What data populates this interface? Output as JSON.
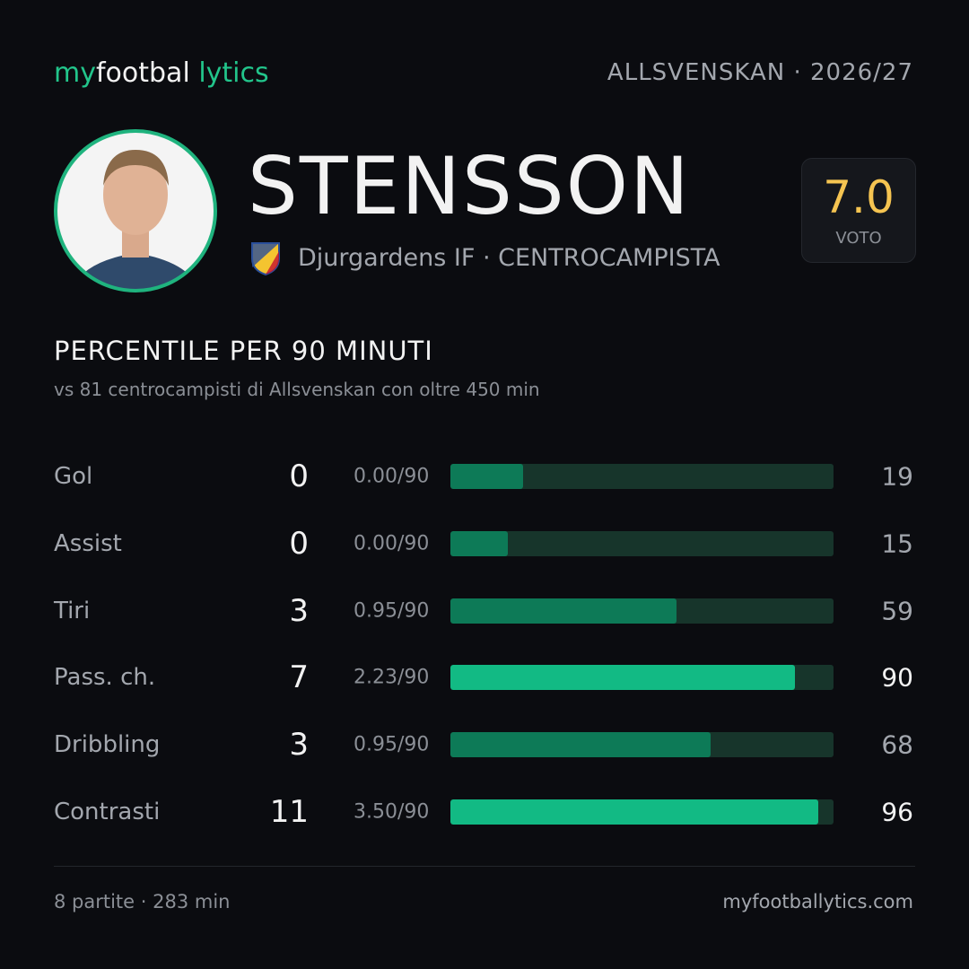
{
  "brand": {
    "parts": [
      "my",
      "footbal",
      "lytics"
    ]
  },
  "competition": {
    "league": "ALLSVENSKAN",
    "season": "· 2026/27"
  },
  "player": {
    "name": "STENSSON",
    "team": "Djurgardens IF",
    "role": "· CENTROCAMPISTA"
  },
  "rating": {
    "value": "7.0",
    "label": "VOTO"
  },
  "section": {
    "title": "PERCENTILE PER 90 MINUTI",
    "subtitle": "vs 81 centrocampisti di Allsvenskan con oltre 450 min"
  },
  "rows": [
    {
      "label": "Gol",
      "total": 0,
      "per90": "0.00/90",
      "percentile": 19,
      "color": "#0d7a57"
    },
    {
      "label": "Assist",
      "total": 0,
      "per90": "0.00/90",
      "percentile": 15,
      "color": "#0d7a57"
    },
    {
      "label": "Tiri",
      "total": 3,
      "per90": "0.95/90",
      "percentile": 59,
      "color": "#0d7a57"
    },
    {
      "label": "Pass. ch.",
      "total": 7,
      "per90": "2.23/90",
      "percentile": 90,
      "color": "#12ba84"
    },
    {
      "label": "Dribbling",
      "total": 3,
      "per90": "0.95/90",
      "percentile": 68,
      "color": "#0d7a57"
    },
    {
      "label": "Contrasti",
      "total": 11,
      "per90": "3.50/90",
      "percentile": 96,
      "color": "#12ba84"
    }
  ],
  "footer": {
    "stats": "8 partite · 283 min",
    "site": "myfootballytics.com"
  }
}
